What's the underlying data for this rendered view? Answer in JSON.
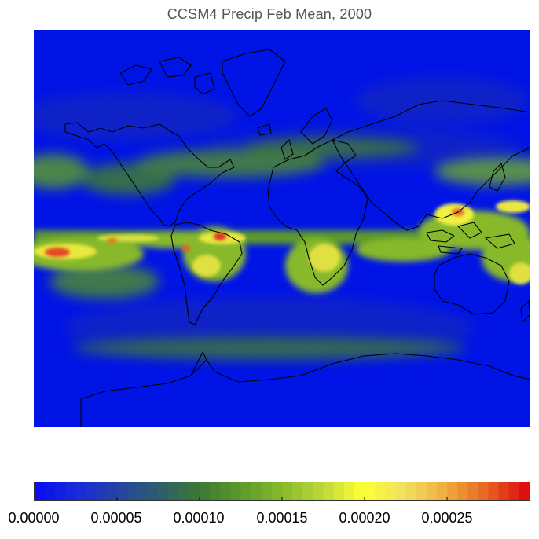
{
  "title": "CCSM4 Precip Feb Mean, 2000",
  "colors": {
    "ocean_base": "#0014e6",
    "coast_stroke": "#000000"
  },
  "colorbar": {
    "tick_labels": [
      "0.00000",
      "0.00005",
      "0.00010",
      "0.00015",
      "0.00020",
      "0.00025"
    ],
    "ticks": [
      0.0,
      5e-05,
      0.0001,
      0.00015,
      0.0002,
      0.00025
    ],
    "range": [
      0.0,
      0.0003
    ],
    "bins": 48,
    "colors": [
      "#0a10f0",
      "#1b2bd6",
      "#26459f",
      "#2d5f6a",
      "#3d7a33",
      "#5b9a2a",
      "#87b92a",
      "#bdd83a",
      "#ffff33",
      "#f2e060",
      "#efb040",
      "#e86a24",
      "#de1010"
    ]
  }
}
